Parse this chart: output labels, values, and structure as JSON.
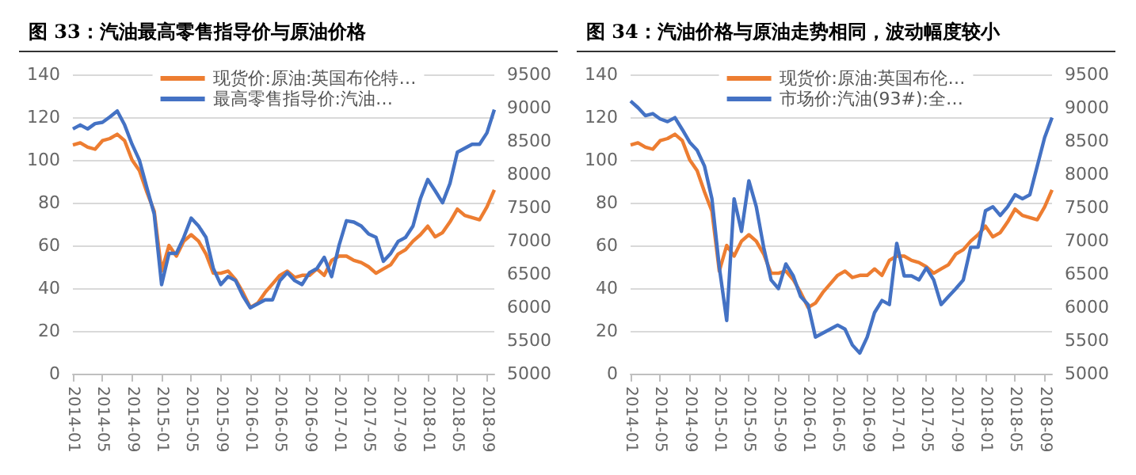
{
  "chart_data": [
    {
      "type": "line",
      "title": "图 33：汽油最高零售指导价与原油价格",
      "categories": [
        "2014-01",
        null,
        null,
        null,
        "2014-05",
        null,
        null,
        null,
        "2014-09",
        null,
        null,
        null,
        "2015-01",
        null,
        null,
        null,
        "2015-05",
        null,
        null,
        null,
        "2015-09",
        null,
        null,
        null,
        "2016-01",
        null,
        null,
        null,
        "2016-05",
        null,
        null,
        null,
        "2016-09",
        null,
        null,
        null,
        "2017-01",
        null,
        null,
        null,
        "2017-05",
        null,
        null,
        null,
        "2017-09",
        null,
        null,
        null,
        "2018-01",
        null,
        null,
        null,
        "2018-05",
        null,
        null,
        null,
        "2018-09",
        null
      ],
      "series": [
        {
          "name": "现货价:原油:英国布伦特…",
          "color": "#ed7d31",
          "values": [
            107,
            108,
            106,
            105,
            109,
            110,
            112,
            109,
            100,
            95,
            85,
            76,
            48,
            60,
            55,
            62,
            65,
            62,
            56,
            47,
            47,
            48,
            44,
            38,
            31,
            33,
            38,
            42,
            46,
            48,
            45,
            46,
            46,
            49,
            46,
            53,
            55,
            55,
            53,
            52,
            50,
            47,
            49,
            51,
            56,
            58,
            62,
            65,
            69,
            64,
            66,
            71,
            77,
            74,
            73,
            72,
            78,
            86
          ]
        },
        {
          "name": "最高零售指导价:汽油…",
          "color": "#4472c4",
          "axis": "y2",
          "values": [
            8680,
            8740,
            8680,
            8760,
            8780,
            8860,
            8950,
            8740,
            8450,
            8210,
            7800,
            7400,
            6340,
            6810,
            6810,
            7050,
            7340,
            7220,
            7050,
            6580,
            6340,
            6460,
            6400,
            6170,
            5990,
            6050,
            6110,
            6110,
            6400,
            6520,
            6400,
            6340,
            6520,
            6580,
            6750,
            6460,
            6930,
            7300,
            7280,
            7220,
            7100,
            7050,
            6690,
            6810,
            6990,
            7050,
            7220,
            7630,
            7920,
            7750,
            7570,
            7860,
            8330,
            8390,
            8450,
            8450,
            8620,
            8970
          ]
        }
      ],
      "ylim": [
        0,
        140
      ],
      "yticks": [
        0,
        20,
        40,
        60,
        80,
        100,
        120,
        140
      ],
      "y2lim": [
        5000,
        9500
      ],
      "y2ticks": [
        5000,
        5500,
        6000,
        6500,
        7000,
        7500,
        8000,
        8500,
        9000,
        9500
      ],
      "grid": "y",
      "legend": "top"
    },
    {
      "type": "line",
      "title": "图 34：汽油价格与原油走势相同，波动幅度较小",
      "categories": [
        "2014-01",
        null,
        null,
        null,
        "2014-05",
        null,
        null,
        null,
        "2014-09",
        null,
        null,
        null,
        "2015-01",
        null,
        null,
        null,
        "2015-05",
        null,
        null,
        null,
        "2015-09",
        null,
        null,
        null,
        "2016-01",
        null,
        null,
        null,
        "2016-05",
        null,
        null,
        null,
        "2016-09",
        null,
        null,
        null,
        "2017-01",
        null,
        null,
        null,
        "2017-05",
        null,
        null,
        null,
        "2017-09",
        null,
        null,
        null,
        "2018-01",
        null,
        null,
        null,
        "2018-05",
        null,
        null,
        null,
        "2018-09",
        null
      ],
      "series": [
        {
          "name": "现货价:原油:英国布伦…",
          "color": "#ed7d31",
          "values": [
            107,
            108,
            106,
            105,
            109,
            110,
            112,
            109,
            100,
            95,
            85,
            76,
            48,
            60,
            55,
            62,
            65,
            62,
            56,
            47,
            47,
            48,
            44,
            38,
            31,
            33,
            38,
            42,
            46,
            48,
            45,
            46,
            46,
            49,
            46,
            53,
            55,
            55,
            53,
            52,
            50,
            47,
            49,
            51,
            56,
            58,
            62,
            65,
            69,
            64,
            66,
            71,
            77,
            74,
            73,
            72,
            78,
            86
          ]
        },
        {
          "name": "市场价:汽油(93#):全…",
          "color": "#4472c4",
          "axis": "y2",
          "values": [
            9100,
            9000,
            8880,
            8910,
            8830,
            8790,
            8850,
            8670,
            8480,
            8360,
            8120,
            7630,
            6600,
            5800,
            7630,
            7140,
            7900,
            7510,
            6900,
            6410,
            6280,
            6650,
            6470,
            6160,
            6040,
            5550,
            5610,
            5670,
            5730,
            5670,
            5430,
            5310,
            5550,
            5920,
            6100,
            6040,
            6960,
            6470,
            6470,
            6410,
            6590,
            6410,
            6040,
            6160,
            6280,
            6410,
            6900,
            6900,
            7450,
            7510,
            7380,
            7510,
            7690,
            7630,
            7690,
            8120,
            8550,
            8850
          ]
        }
      ],
      "ylim": [
        0,
        140
      ],
      "yticks": [
        0,
        20,
        40,
        60,
        80,
        100,
        120,
        140
      ],
      "y2lim": [
        5000,
        9500
      ],
      "y2ticks": [
        5000,
        5500,
        6000,
        6500,
        7000,
        7500,
        8000,
        8500,
        9000,
        9500
      ],
      "grid": "y",
      "legend": "top"
    }
  ]
}
